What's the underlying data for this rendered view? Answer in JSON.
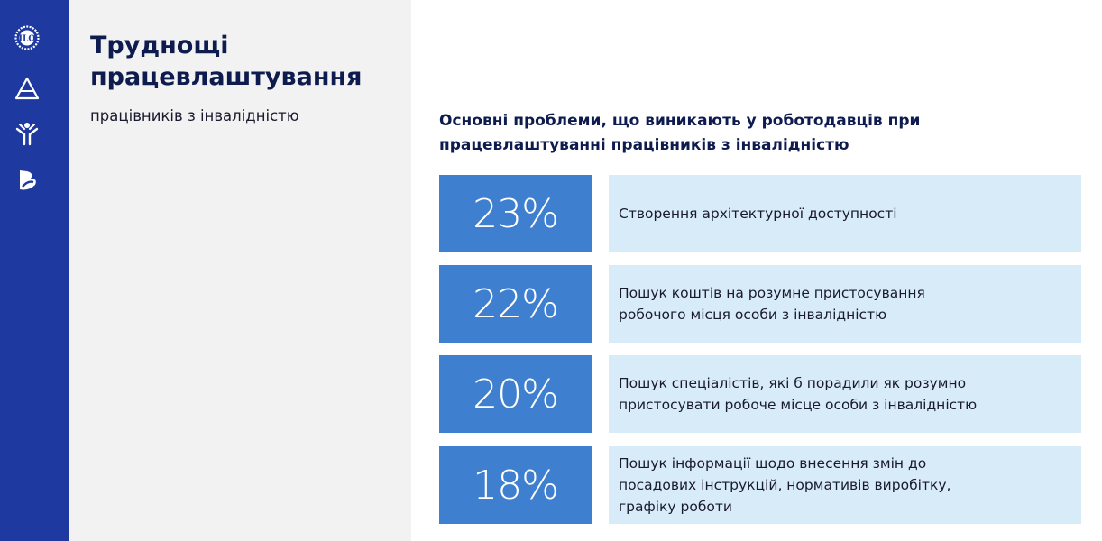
{
  "sidebar": {
    "logos": [
      {
        "icon": "ilo-emblem-icon"
      },
      {
        "icon": "triangle-logo-icon"
      },
      {
        "icon": "person-figure-logo-icon"
      },
      {
        "icon": "b-leaf-logo-icon"
      }
    ],
    "color": "#1e3aa0"
  },
  "left_panel": {
    "title": "Труднощі працевлаштування",
    "subtitle": "працівників з інвалідністю"
  },
  "main": {
    "heading": "Основні проблеми, що виникають у роботодавців при працевлаштуванні працівників з інвалідністю",
    "items": [
      {
        "percent": "23%",
        "text": "Створення  архітектурної доступності"
      },
      {
        "percent": "22%",
        "text": "Пошук  коштів на розумне пристосування\nробочого місця особи з інвалідністю"
      },
      {
        "percent": "20%",
        "text": "Пошук спеціалістів, які б порадили як розумно\nпристосувати робоче місце особи з інвалідністю"
      },
      {
        "percent": "18%",
        "text": "Пошук інформації щодо внесення змін до\nпосадових інструкцій, нормативів виробітку,\nграфіку роботи"
      }
    ]
  },
  "colors": {
    "sidebar": "#1e3aa0",
    "percent_box": "#3e7fd0",
    "description_box": "#d8ebf8",
    "title_text": "#0d1b4f"
  }
}
